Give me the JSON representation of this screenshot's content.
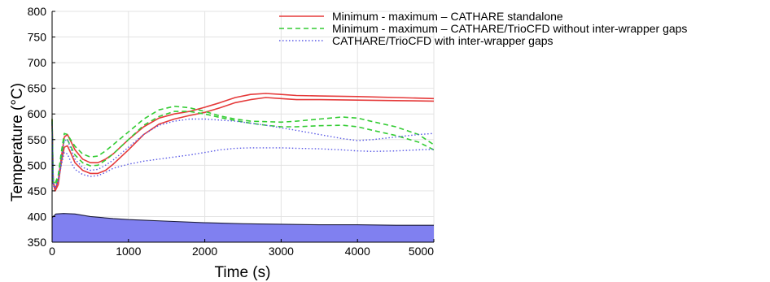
{
  "chart_data": {
    "type": "line",
    "title": "",
    "xlabel": "Time (s)",
    "ylabel": "Temperature (°C)",
    "xlim": [
      0,
      5000
    ],
    "ylim": [
      350,
      800
    ],
    "x_ticks": [
      "0",
      "1000",
      "2000",
      "3000",
      "4000",
      "5000"
    ],
    "y_ticks": [
      "350",
      "400",
      "450",
      "500",
      "550",
      "600",
      "650",
      "700",
      "750",
      "800"
    ],
    "grid": true,
    "legend_position": "top-right",
    "legend": [
      {
        "label": "Minimum - maximum – CATHARE standalone",
        "color": "#e53a3a",
        "dash": "solid"
      },
      {
        "label": "Minimum - maximum – CATHARE/TrioCFD without inter-wrapper gaps",
        "color": "#33cc33",
        "dash": "dashed"
      },
      {
        "label": "CATHARE/TrioCFD with inter-wrapper gaps",
        "color": "#5a5ae6",
        "dash": "dotted"
      }
    ],
    "series": [
      {
        "legend_index": 0,
        "color": "#e53a3a",
        "dash": "solid",
        "x": [
          0,
          15,
          40,
          80,
          120,
          160,
          200,
          250,
          300,
          400,
          500,
          600,
          700,
          800,
          1000,
          1200,
          1400,
          1600,
          1800,
          2000,
          2200,
          2400,
          2600,
          2800,
          3000,
          3200,
          3500,
          4000,
          4500,
          5000
        ],
        "y": [
          590,
          470,
          453,
          470,
          515,
          555,
          560,
          545,
          530,
          512,
          505,
          505,
          512,
          522,
          550,
          575,
          592,
          600,
          605,
          613,
          622,
          632,
          638,
          640,
          638,
          636,
          635,
          634,
          632,
          630
        ]
      },
      {
        "legend_index": 0,
        "color": "#e53a3a",
        "dash": "solid",
        "x": [
          0,
          15,
          40,
          80,
          120,
          160,
          200,
          250,
          300,
          400,
          500,
          600,
          700,
          800,
          1000,
          1200,
          1400,
          1600,
          1800,
          2000,
          2200,
          2400,
          2600,
          2800,
          3000,
          3200,
          3500,
          4000,
          4500,
          5000
        ],
        "y": [
          590,
          465,
          450,
          462,
          505,
          535,
          538,
          522,
          505,
          490,
          484,
          484,
          490,
          502,
          530,
          560,
          580,
          590,
          597,
          603,
          612,
          622,
          628,
          632,
          630,
          628,
          628,
          627,
          626,
          625
        ]
      },
      {
        "legend_index": 1,
        "color": "#33cc33",
        "dash": "dashed",
        "x": [
          0,
          15,
          40,
          80,
          120,
          160,
          200,
          250,
          300,
          400,
          500,
          600,
          700,
          800,
          1000,
          1200,
          1400,
          1600,
          1800,
          2000,
          2200,
          2400,
          2600,
          2800,
          3000,
          3200,
          3500,
          3800,
          4000,
          4200,
          4500,
          4800,
          5000
        ],
        "y": [
          590,
          470,
          465,
          480,
          525,
          562,
          560,
          548,
          537,
          522,
          516,
          518,
          528,
          540,
          565,
          590,
          608,
          615,
          612,
          605,
          596,
          590,
          586,
          585,
          584,
          586,
          590,
          594,
          592,
          585,
          575,
          560,
          540
        ]
      },
      {
        "legend_index": 1,
        "color": "#33cc33",
        "dash": "dashed",
        "x": [
          0,
          15,
          40,
          80,
          120,
          160,
          200,
          250,
          300,
          400,
          500,
          600,
          700,
          800,
          1000,
          1200,
          1400,
          1600,
          1800,
          2000,
          2200,
          2400,
          2600,
          2800,
          3000,
          3200,
          3500,
          3800,
          4000,
          4200,
          4500,
          4800,
          5000
        ],
        "y": [
          585,
          468,
          462,
          475,
          515,
          552,
          550,
          535,
          520,
          505,
          499,
          500,
          510,
          522,
          550,
          578,
          595,
          605,
          605,
          600,
          593,
          587,
          582,
          578,
          575,
          575,
          577,
          578,
          575,
          568,
          558,
          545,
          530
        ]
      },
      {
        "legend_index": 2,
        "color": "#5a5ae6",
        "dash": "dotted",
        "x": [
          0,
          15,
          40,
          80,
          120,
          160,
          200,
          250,
          300,
          400,
          500,
          600,
          700,
          800,
          1000,
          1200,
          1400,
          1600,
          1800,
          2000,
          2200,
          2400,
          2600,
          2800,
          3000,
          3200,
          3500,
          3800,
          4000,
          4200,
          4500,
          4800,
          5000
        ],
        "y": [
          585,
          465,
          458,
          470,
          510,
          548,
          550,
          530,
          512,
          496,
          490,
          492,
          500,
          510,
          535,
          560,
          578,
          586,
          590,
          590,
          588,
          586,
          582,
          578,
          573,
          568,
          560,
          552,
          548,
          550,
          555,
          560,
          562
        ]
      },
      {
        "legend_index": 2,
        "color": "#5a5ae6",
        "dash": "dotted",
        "x": [
          0,
          15,
          40,
          80,
          120,
          160,
          200,
          250,
          300,
          400,
          500,
          600,
          700,
          800,
          1000,
          1200,
          1400,
          1600,
          1800,
          2000,
          2200,
          2400,
          2600,
          2800,
          3000,
          3200,
          3500,
          3800,
          4000,
          4200,
          4500,
          4800,
          5000
        ],
        "y": [
          580,
          460,
          455,
          468,
          500,
          525,
          522,
          505,
          492,
          482,
          478,
          480,
          486,
          494,
          502,
          508,
          512,
          516,
          520,
          525,
          530,
          533,
          534,
          534,
          534,
          533,
          532,
          530,
          528,
          527,
          528,
          530,
          531
        ]
      }
    ],
    "area": {
      "color": "#8080f0",
      "baseline": 350,
      "x": [
        0,
        50,
        150,
        300,
        500,
        800,
        1000,
        1500,
        2000,
        2500,
        3000,
        3500,
        4000,
        4500,
        5000
      ],
      "y": [
        398,
        405,
        406,
        405,
        400,
        396,
        394,
        391,
        388,
        386,
        385,
        384,
        384,
        383,
        383
      ]
    }
  }
}
